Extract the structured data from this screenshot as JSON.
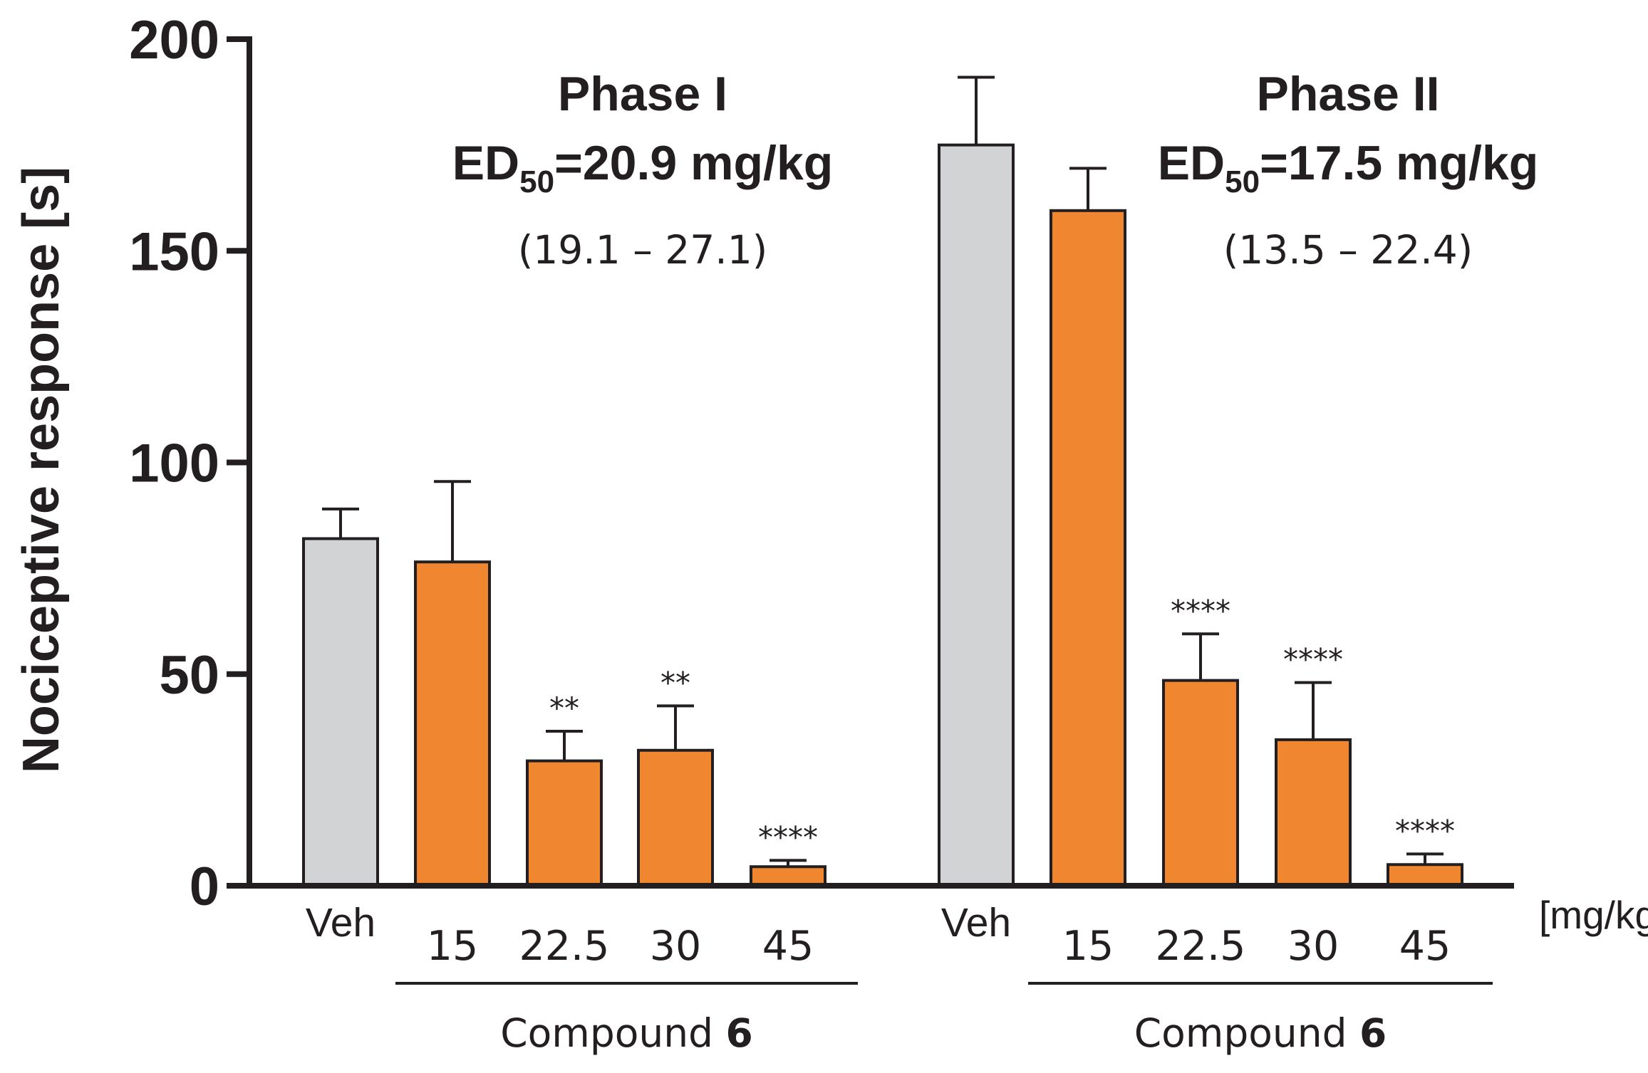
{
  "chart_data": {
    "type": "bar",
    "ylabel": "Nociceptive response [s]",
    "ylim": [
      0,
      200
    ],
    "yticks": [
      0,
      50,
      100,
      150,
      200
    ],
    "unit_label": "[mg/kg]",
    "colors": {
      "vehicle": "#d1d3d4",
      "compound": "#f0862f",
      "axis": "#231f20"
    },
    "panels": [
      {
        "title": "Phase I",
        "ed_prefix": "ED",
        "ed_sub": "50",
        "ed_value": "=20.9 mg/kg",
        "ci": "(19.1 – 27.1)",
        "group_label": "Compound ",
        "group_bold": "6",
        "bars": [
          {
            "label": "Veh",
            "value": 82,
            "error": 7,
            "sig": "",
            "kind": "vehicle"
          },
          {
            "label": "15",
            "value": 76.5,
            "error": 19,
            "sig": "",
            "kind": "compound"
          },
          {
            "label": "22.5",
            "value": 29.5,
            "error": 7,
            "sig": "**",
            "kind": "compound"
          },
          {
            "label": "30",
            "value": 32,
            "error": 10.5,
            "sig": "**",
            "kind": "compound"
          },
          {
            "label": "45",
            "value": 4.5,
            "error": 1.5,
            "sig": "****",
            "kind": "compound"
          }
        ]
      },
      {
        "title": "Phase II",
        "ed_prefix": "ED",
        "ed_sub": "50",
        "ed_value": "=17.5 mg/kg",
        "ci": "(13.5 – 22.4)",
        "group_label": "Compound ",
        "group_bold": "6",
        "bars": [
          {
            "label": "Veh",
            "value": 175,
            "error": 16,
            "sig": "",
            "kind": "vehicle"
          },
          {
            "label": "15",
            "value": 159.5,
            "error": 10,
            "sig": "",
            "kind": "compound"
          },
          {
            "label": "22.5",
            "value": 48.5,
            "error": 11,
            "sig": "****",
            "kind": "compound"
          },
          {
            "label": "30",
            "value": 34.5,
            "error": 13.5,
            "sig": "****",
            "kind": "compound"
          },
          {
            "label": "45",
            "value": 5,
            "error": 2.5,
            "sig": "****",
            "kind": "compound"
          }
        ]
      }
    ]
  }
}
